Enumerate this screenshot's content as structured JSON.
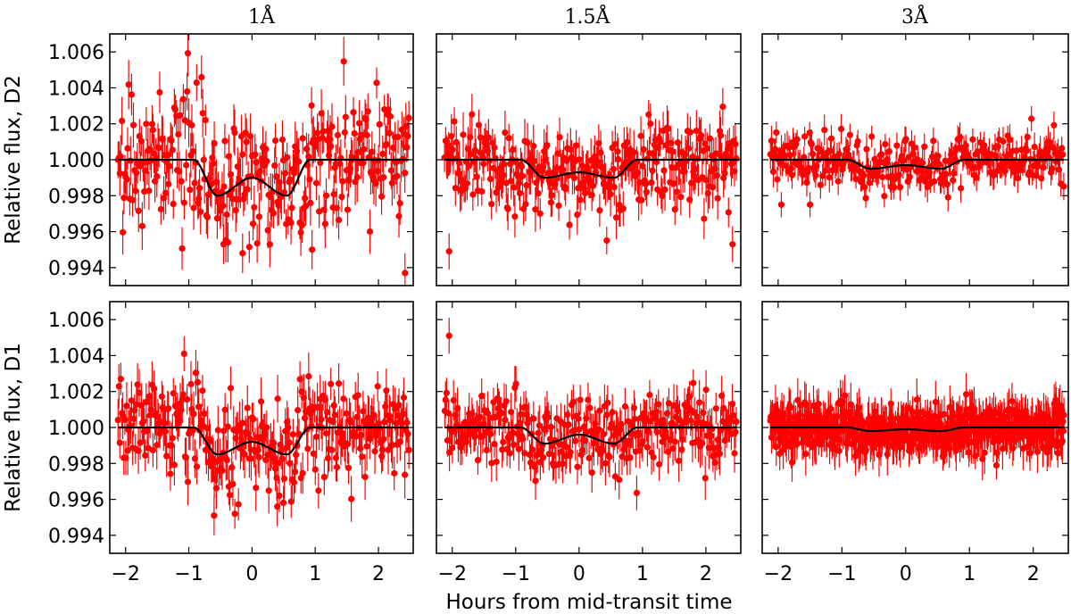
{
  "figure": {
    "xlabel": "Hours from mid-transit time",
    "column_titles": [
      "1Å",
      "1.5Å",
      "3Å"
    ],
    "row_ylabels": [
      "Relative flux, D2",
      "Relative flux, D1"
    ],
    "x_ticks": [
      -2,
      -1,
      0,
      1,
      2
    ],
    "x_tick_labels": [
      "−2",
      "−1",
      "0",
      "1",
      "2"
    ],
    "y_ticks": [
      0.994,
      0.996,
      0.998,
      1.0,
      1.002,
      1.004,
      1.006
    ],
    "y_tick_labels": [
      "0.994",
      "0.996",
      "0.998",
      "1.000",
      "1.002",
      "1.004",
      "1.006"
    ],
    "colors": {
      "data": "#ff0000",
      "model": "#000000",
      "frame": "#000000"
    }
  },
  "chart_data": [
    {
      "type": "scatter",
      "row": "D2",
      "column": "1Å",
      "xlim": [
        -2.25,
        2.55
      ],
      "ylim": [
        0.993,
        1.007
      ],
      "series": [
        {
          "values": "red points with vertical error bars, scatter about 0.0018"
        },
        {
          "model_depth": 0.002,
          "model_mid": 0.001
        }
      ],
      "data_count": 300,
      "scatter": 0.0018,
      "errbar": 0.0011,
      "min_points": [
        [
          -0.45,
          0.9953
        ],
        [
          -0.15,
          0.9948
        ],
        [
          0.95,
          0.995
        ],
        [
          2.42,
          0.9937
        ]
      ]
    },
    {
      "type": "scatter",
      "row": "D2",
      "column": "1.5Å",
      "xlim": [
        -2.25,
        2.55
      ],
      "ylim": [
        0.993,
        1.007
      ],
      "model_depth": 0.001,
      "model_mid": 0.0007,
      "data_count": 300,
      "scatter": 0.0012,
      "errbar": 0.001,
      "min_points": [
        [
          -2.05,
          0.9949
        ],
        [
          2.42,
          0.9953
        ]
      ]
    },
    {
      "type": "scatter",
      "row": "D2",
      "column": "3Å",
      "xlim": [
        -2.25,
        2.55
      ],
      "ylim": [
        0.993,
        1.007
      ],
      "model_depth": 0.0005,
      "model_mid": 0.0003,
      "data_count": 300,
      "scatter": 0.0007,
      "errbar": 0.0007,
      "min_points": [
        [
          -1.95,
          0.9975
        ],
        [
          -1.5,
          0.9975
        ]
      ]
    },
    {
      "type": "scatter",
      "row": "D1",
      "column": "1Å",
      "xlim": [
        -2.25,
        2.55
      ],
      "ylim": [
        0.993,
        1.007
      ],
      "model_depth": 0.0015,
      "model_mid": 0.0008,
      "data_count": 300,
      "scatter": 0.0013,
      "errbar": 0.0011,
      "min_points": [
        [
          -0.6,
          0.9951
        ],
        [
          0.4,
          0.9956
        ]
      ]
    },
    {
      "type": "scatter",
      "row": "D1",
      "column": "1.5Å",
      "xlim": [
        -2.25,
        2.55
      ],
      "ylim": [
        0.993,
        1.007
      ],
      "model_depth": 0.0009,
      "model_mid": 0.0004,
      "data_count": 300,
      "scatter": 0.001,
      "errbar": 0.001,
      "min_points": [
        [
          -2.05,
          1.0051
        ]
      ]
    },
    {
      "type": "scatter",
      "row": "D1",
      "column": "3Å",
      "xlim": [
        -2.25,
        2.55
      ],
      "ylim": [
        0.993,
        1.007
      ],
      "model_depth": 0.0002,
      "model_mid": 0.0001,
      "data_count": 600,
      "scatter": 0.0007,
      "errbar": 0.001,
      "min_points": []
    }
  ]
}
